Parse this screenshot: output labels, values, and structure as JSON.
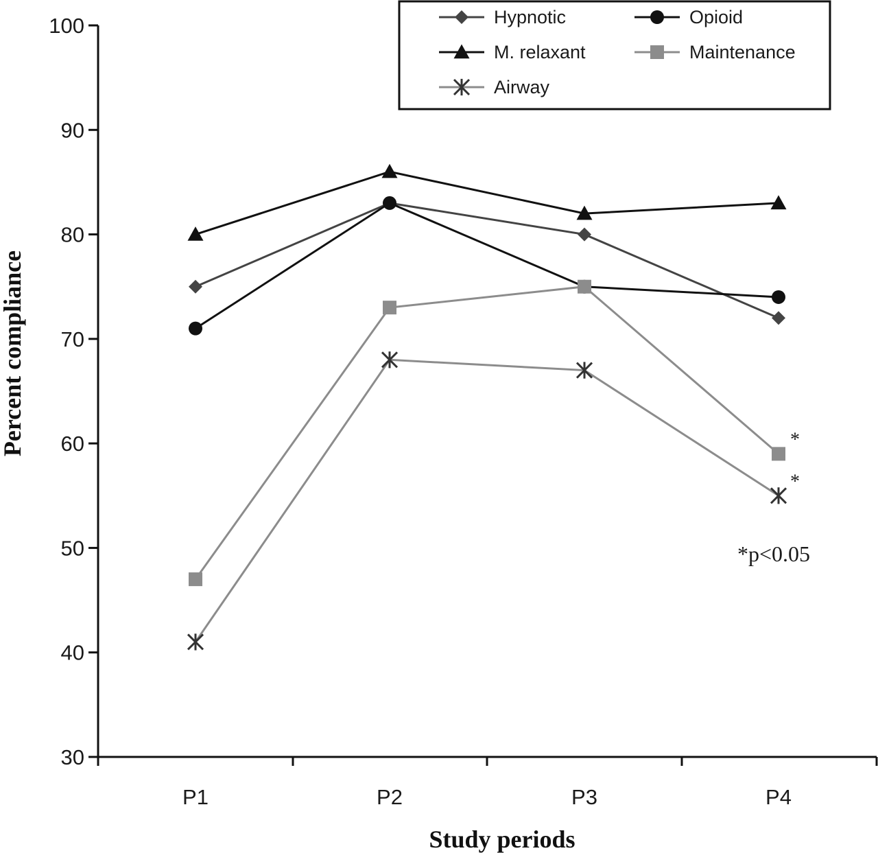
{
  "chart_data": {
    "type": "line",
    "categories": [
      "P1",
      "P2",
      "P3",
      "P4"
    ],
    "xlabel": "Study periods",
    "ylabel": "Percent compliance",
    "ylim": [
      30,
      100
    ],
    "yticks": [
      "30",
      "40",
      "50",
      "60",
      "70",
      "80",
      "90",
      "100"
    ],
    "grid": false,
    "legend_position": "top-right",
    "series": [
      {
        "name": "Hypnotic",
        "values": [
          75,
          83,
          80,
          72
        ],
        "color": "#444444",
        "marker": "diamond"
      },
      {
        "name": "Opioid",
        "values": [
          71,
          83,
          75,
          74
        ],
        "color": "#111111",
        "marker": "circle"
      },
      {
        "name": "M. relaxant",
        "values": [
          80,
          86,
          82,
          83
        ],
        "color": "#111111",
        "marker": "triangle"
      },
      {
        "name": "Maintenance",
        "values": [
          47,
          73,
          75,
          59
        ],
        "color": "#8c8c8c",
        "marker": "square"
      },
      {
        "name": "Airway",
        "values": [
          41,
          68,
          67,
          55
        ],
        "color": "#8c8c8c",
        "marker": "asterisk"
      }
    ],
    "significance_markers": [
      {
        "series": "Maintenance",
        "category": "P4",
        "label": "*"
      },
      {
        "series": "Airway",
        "category": "P4",
        "label": "*"
      }
    ],
    "annotation": "*p<0.05"
  }
}
